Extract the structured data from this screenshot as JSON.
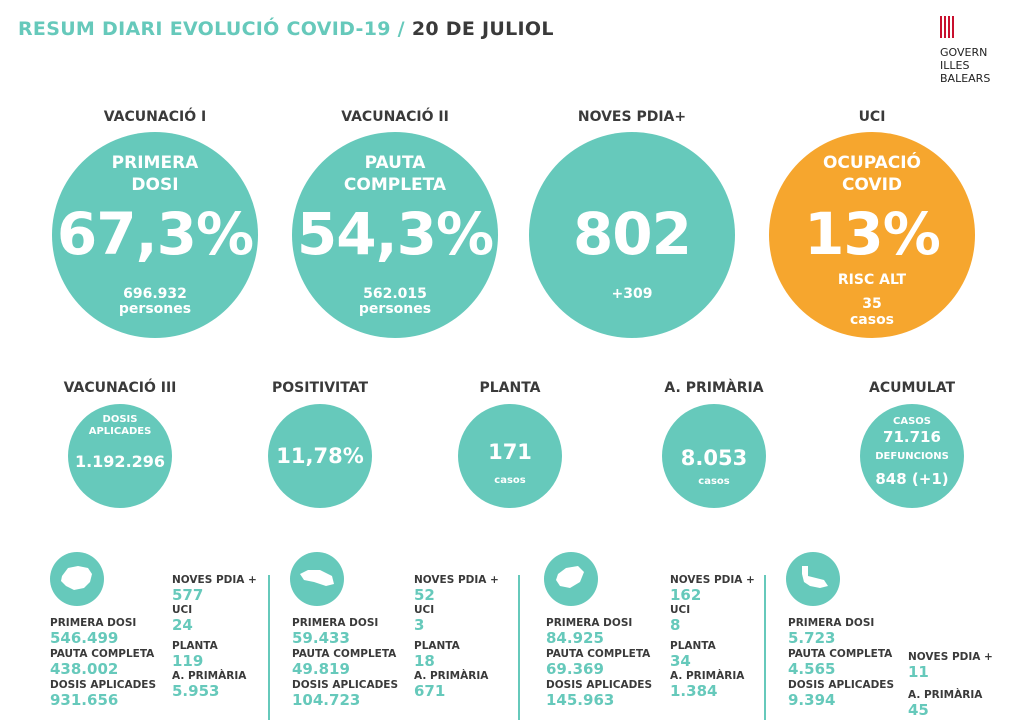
{
  "header": {
    "title": "RESUM DIARI EVOLUCIÓ COVID-19 /",
    "date": "20 DE JULIOL"
  },
  "logo": {
    "line1": "GOVERN",
    "line2": "ILLES",
    "line3": "BALEARS",
    "color": "#c8102e"
  },
  "colors": {
    "teal": "#66c9bb",
    "orange": "#f6a62e",
    "text": "#3a3a3a"
  },
  "big": [
    {
      "heading": "VACUNACIÓ I",
      "label1": "PRIMERA",
      "label2": "DOSI",
      "value": "67,3%",
      "sub1": "696.932",
      "sub2": "persones"
    },
    {
      "heading": "VACUNACIÓ II",
      "label1": "PAUTA",
      "label2": "COMPLETA",
      "value": "54,3%",
      "sub1": "562.015",
      "sub2": "persones"
    },
    {
      "heading": "NOVES PDIA+",
      "value": "802",
      "sub1": "+309"
    },
    {
      "heading": "UCI",
      "label1": "OCUPACIÓ",
      "label2": "COVID",
      "value": "13%",
      "sub1": "RISC ALT",
      "sub2": "35",
      "sub3": "casos"
    }
  ],
  "small": [
    {
      "heading": "VACUNACIÓ III",
      "label1": "DOSIS",
      "label2": "APLICADES",
      "value": "1.192.296"
    },
    {
      "heading": "POSITIVITAT",
      "value": "11,78%"
    },
    {
      "heading": "PLANTA",
      "value": "171",
      "sub": "casos"
    },
    {
      "heading": "A. PRIMÀRIA",
      "value": "8.053",
      "sub": "casos"
    },
    {
      "heading": "ACUMULAT",
      "label1": "CASOS",
      "value1": "71.716",
      "label2": "DEFUNCIONS",
      "value2": "848 (+1)"
    }
  ],
  "regions": [
    {
      "icon": "mallorca-island-icon",
      "primera_k": "PRIMERA DOSI",
      "primera_v": "546.499",
      "pauta_k": "PAUTA COMPLETA",
      "pauta_v": "438.002",
      "dosis_k": "DOSIS APLICADES",
      "dosis_v": "931.656",
      "pdia_k": "NOVES PDIA +",
      "pdia_v": "577",
      "uci_k": "UCI",
      "uci_v": "24",
      "planta_k": "PLANTA",
      "planta_v": "119",
      "ap_k": "A. PRIMÀRIA",
      "ap_v": "5.953"
    },
    {
      "icon": "menorca-island-icon",
      "primera_k": "PRIMERA DOSI",
      "primera_v": "59.433",
      "pauta_k": "PAUTA COMPLETA",
      "pauta_v": "49.819",
      "dosis_k": "DOSIS APLICADES",
      "dosis_v": "104.723",
      "pdia_k": "NOVES PDIA +",
      "pdia_v": "52",
      "uci_k": "UCI",
      "uci_v": "3",
      "planta_k": "PLANTA",
      "planta_v": "18",
      "ap_k": "A. PRIMÀRIA",
      "ap_v": "671"
    },
    {
      "icon": "eivissa-island-icon",
      "primera_k": "PRIMERA DOSI",
      "primera_v": "84.925",
      "pauta_k": "PAUTA COMPLETA",
      "pauta_v": "69.369",
      "dosis_k": "DOSIS APLICADES",
      "dosis_v": "145.963",
      "pdia_k": "NOVES PDIA +",
      "pdia_v": "162",
      "uci_k": "UCI",
      "uci_v": "8",
      "planta_k": "PLANTA",
      "planta_v": "34",
      "ap_k": "A. PRIMÀRIA",
      "ap_v": "1.384"
    },
    {
      "icon": "formentera-island-icon",
      "primera_k": "PRIMERA DOSI",
      "primera_v": "5.723",
      "pauta_k": "PAUTA COMPLETA",
      "pauta_v": "4.565",
      "dosis_k": "DOSIS APLICADES",
      "dosis_v": "9.394",
      "pdia_k": "NOVES PDIA +",
      "pdia_v": "11",
      "ap_k": "A. PRIMÀRIA",
      "ap_v": "45"
    }
  ]
}
